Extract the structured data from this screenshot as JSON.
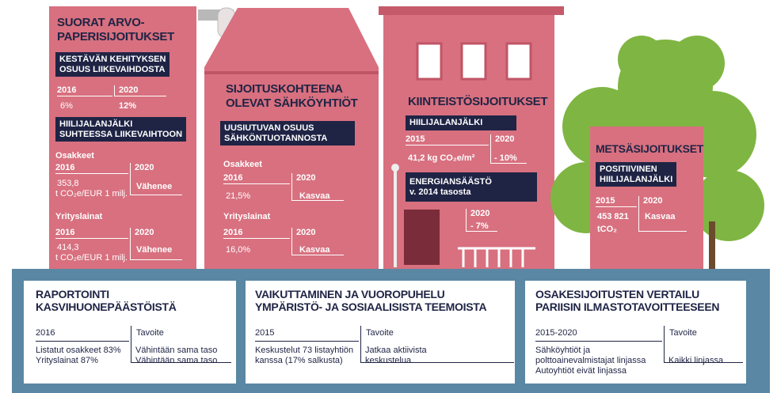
{
  "buildings": [
    {
      "title": [
        "SUORAT ARVO-",
        "PAPERISIJOITUKSET"
      ],
      "label1": [
        "KESTÄVÄN KEHITYKSEN",
        "OSUUS LIIKEVAIHDOSTA"
      ],
      "table1": {
        "header": [
          "2016",
          "2020"
        ],
        "row": [
          "6%",
          "12%"
        ]
      },
      "label2": [
        "HIILIJALANJÄLKI",
        "SUHTEESSA LIIKEVAIHTOON"
      ],
      "sections": [
        {
          "name": "Osakkeet",
          "header": [
            "2016",
            "2020"
          ],
          "value": "353,8",
          "unit": "t CO₂e/EUR 1 milj.",
          "target": "Vähenee"
        },
        {
          "name": "Yrityslainat",
          "header": [
            "2016",
            "2020"
          ],
          "value": "414,3",
          "unit": "t CO₂e/EUR 1 milj.",
          "target": "Vähenee"
        }
      ]
    },
    {
      "title": [
        "SIJOITUSKOHTEENA",
        "OLEVAT SÄHKÖYHTIÖT"
      ],
      "label1": [
        "UUSIUTUVAN OSUUS",
        "SÄHKÖNTUOTANNOSTA"
      ],
      "sections": [
        {
          "name": "Osakkeet",
          "header": [
            "2016",
            "2020"
          ],
          "value": "21,5%",
          "target": "Kasvaa"
        },
        {
          "name": "Yrityslainat",
          "header": [
            "2016",
            "2020"
          ],
          "value": "16,0%",
          "target": "Kasvaa"
        }
      ]
    },
    {
      "title": [
        "KIINTEISTÖSIJOITUKSET"
      ],
      "label1": [
        "HIILIJALANJÄLKI"
      ],
      "table1": {
        "header": [
          "2015",
          "2020"
        ],
        "row": [
          "41,2 kg CO₂e/m²",
          "- 10%"
        ]
      },
      "label2": [
        "ENERGIANSÄÄSTÖ",
        "v. 2014 tasosta"
      ],
      "table2": {
        "header": "2020",
        "value": "- 7%"
      }
    },
    {
      "title": [
        "METSÄSIJOITUKSET"
      ],
      "label1": [
        "POSITIIVINEN",
        "HIILIJALANJÄLKI"
      ],
      "table1": {
        "header": [
          "2015",
          "2020"
        ],
        "value": "453 821",
        "unit": "tCO₂",
        "target": "Kasvaa"
      }
    }
  ],
  "boxes": [
    {
      "title": [
        "RAPORTOINTI",
        "KASVIHUONEPÄÄSTÖISTÄ"
      ],
      "header": [
        "2016",
        "Tavoite"
      ],
      "left": [
        "Listatut osakkeet 83%",
        "Yrityslainat 87%"
      ],
      "right": [
        "Vähintään sama taso",
        "Vähintään sama taso"
      ]
    },
    {
      "title": [
        "VAIKUTTAMINEN JA VUOROPUHELU",
        "YMPÄRISTÖ- JA SOSIAALISISTA TEEMOISTA"
      ],
      "header": [
        "2015",
        "Tavoite"
      ],
      "left": [
        "Keskustelut 73 listayhtiön",
        "kanssa (17% salkusta)"
      ],
      "right": [
        "Jatkaa aktiivista",
        "keskustelua"
      ]
    },
    {
      "title": [
        "OSAKESIJOITUSTEN VERTAILU",
        "PARIISIN ILMASTOTAVOITTEESEEN"
      ],
      "header": [
        "2015-2020",
        "Tavoite"
      ],
      "left": [
        "Sähköyhtiöt ja",
        "polttoainevalmistajat linjassa",
        "Autoyhtiöt eivät linjassa"
      ],
      "right": [
        "Kaikki linjassa"
      ]
    }
  ]
}
